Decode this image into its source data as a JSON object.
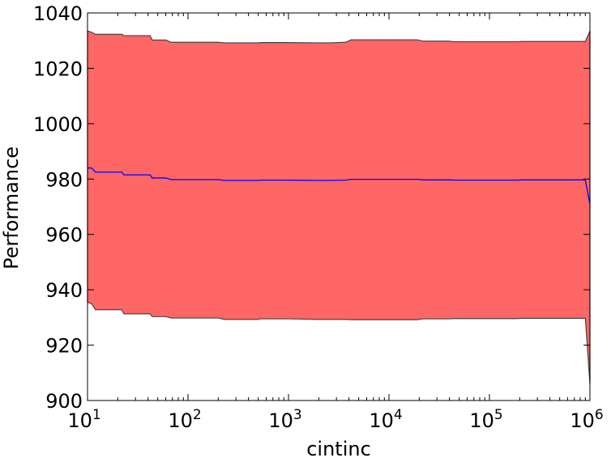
{
  "chart_data": {
    "type": "area",
    "xlabel": "cintinc",
    "ylabel": "Performance",
    "xscale": "log",
    "xlim": [
      10,
      1000000
    ],
    "ylim": [
      900,
      1040
    ],
    "grid": false,
    "x_ticks": [
      {
        "value": 10,
        "base": "10",
        "exp": "1"
      },
      {
        "value": 100,
        "base": "10",
        "exp": "2"
      },
      {
        "value": 1000,
        "base": "10",
        "exp": "3"
      },
      {
        "value": 10000,
        "base": "10",
        "exp": "4"
      },
      {
        "value": 100000,
        "base": "10",
        "exp": "5"
      },
      {
        "value": 1000000,
        "base": "10",
        "exp": "6"
      }
    ],
    "y_ticks": [
      {
        "value": 900,
        "label": "900"
      },
      {
        "value": 920,
        "label": "920"
      },
      {
        "value": 940,
        "label": "940"
      },
      {
        "value": 960,
        "label": "960"
      },
      {
        "value": 980,
        "label": "980"
      },
      {
        "value": 1000,
        "label": "1000"
      },
      {
        "value": 1020,
        "label": "1020"
      },
      {
        "value": 1040,
        "label": "1040"
      }
    ],
    "band_color": "#ff6666",
    "band_edge_color": "#444444",
    "mean_color": "#0000ff",
    "x": [
      10,
      11,
      12,
      22,
      23,
      42,
      44,
      60,
      68,
      200,
      230,
      500,
      520,
      1000,
      1900,
      2600,
      3700,
      4200,
      19000,
      22000,
      40000,
      44000,
      190000,
      210000,
      800000,
      900000,
      1000000
    ],
    "series": [
      {
        "role": "mean",
        "values": [
          984.0,
          984.0,
          982.5,
          982.5,
          981.5,
          981.5,
          980.4,
          980.4,
          979.8,
          979.8,
          979.5,
          979.5,
          979.6,
          979.6,
          979.5,
          979.5,
          979.6,
          979.9,
          979.9,
          979.7,
          979.7,
          979.6,
          979.6,
          979.7,
          979.7,
          979.7,
          971.0
        ]
      },
      {
        "role": "upper",
        "values": [
          1033.5,
          1033.0,
          1032.3,
          1032.3,
          1031.8,
          1031.8,
          1030.2,
          1030.2,
          1029.4,
          1029.4,
          1029.2,
          1029.2,
          1029.3,
          1029.3,
          1029.2,
          1029.2,
          1029.4,
          1030.3,
          1030.3,
          1029.8,
          1029.8,
          1029.6,
          1029.6,
          1029.7,
          1029.7,
          1029.7,
          1033.5
        ]
      },
      {
        "role": "lower",
        "values": [
          935.5,
          935.0,
          932.8,
          932.8,
          931.3,
          931.3,
          930.3,
          930.3,
          929.8,
          929.8,
          929.3,
          929.3,
          929.5,
          929.5,
          929.3,
          929.3,
          929.3,
          929.2,
          929.2,
          929.5,
          929.5,
          929.6,
          929.6,
          929.7,
          929.7,
          929.7,
          906.0
        ]
      }
    ]
  }
}
